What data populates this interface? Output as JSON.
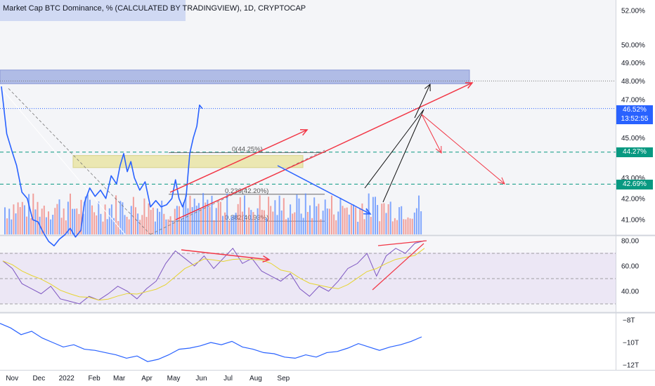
{
  "header": {
    "title": "Market Cap BTC Dominance, % (CALCULATED BY TRADINGVIEW), 1D, CRYPTOCAP"
  },
  "colors": {
    "price_line": "#2962ff",
    "trend_red": "#f23645",
    "rsi_line": "#7e57c2",
    "rsi_ma": "#e6d430",
    "volume_blue": "#5b8cff",
    "volume_red": "#f0837e",
    "level_green": "#089981",
    "resistance_box": "#9aa8e0",
    "yellow_box": "#e8e4a0"
  },
  "price_tags": {
    "current": "46.52%",
    "countdown": "13:52:55",
    "level_1": "44.27%",
    "level_2": "42.69%"
  },
  "fib_labels": {
    "top": "0(44.25%)",
    "mid": "0.236(42.20%)",
    "low": "0.382(40.93%)"
  },
  "chart_data": {
    "type": "line",
    "title": "Market Cap BTC Dominance, % (CALCULATED BY TRADINGVIEW), 1D, CRYPTOCAP",
    "x_ticks": [
      "Nov",
      "Dec",
      "2022",
      "Feb",
      "Mar",
      "Apr",
      "May",
      "Jun",
      "Jul",
      "Aug",
      "Sep"
    ],
    "price_axis": {
      "ticks": [
        "52.00%",
        "50.00%",
        "49.00%",
        "48.00%",
        "47.00%",
        "45.00%",
        "43.00%",
        "42.00%",
        "41.00%"
      ],
      "scale": "log"
    },
    "series": [
      {
        "points": [
          [
            "2021-10-20",
            47.7
          ],
          [
            "2021-10-26",
            45.2
          ],
          [
            "2021-11-01",
            44.3
          ],
          [
            "2021-11-06",
            43.6
          ],
          [
            "2021-11-12",
            42.3
          ],
          [
            "2021-11-18",
            42.0
          ],
          [
            "2021-11-24",
            41.0
          ],
          [
            "2021-11-30",
            40.9
          ],
          [
            "2021-12-06",
            40.4
          ],
          [
            "2021-12-12",
            40.0
          ],
          [
            "2021-12-18",
            39.8
          ],
          [
            "2021-12-24",
            40.1
          ],
          [
            "2021-12-30",
            40.3
          ],
          [
            "2022-01-05",
            40.6
          ],
          [
            "2022-01-11",
            40.2
          ],
          [
            "2022-01-17",
            40.5
          ],
          [
            "2022-01-21",
            41.8
          ],
          [
            "2022-01-27",
            42.5
          ],
          [
            "2022-02-02",
            42.1
          ],
          [
            "2022-02-08",
            42.4
          ],
          [
            "2022-02-14",
            42.0
          ],
          [
            "2022-02-20",
            43.1
          ],
          [
            "2022-02-26",
            42.7
          ],
          [
            "2022-03-02",
            43.6
          ],
          [
            "2022-03-06",
            44.2
          ],
          [
            "2022-03-10",
            43.3
          ],
          [
            "2022-03-14",
            43.8
          ],
          [
            "2022-03-18",
            43.0
          ],
          [
            "2022-03-24",
            42.4
          ],
          [
            "2022-03-30",
            42.8
          ],
          [
            "2022-04-05",
            41.6
          ],
          [
            "2022-04-11",
            41.9
          ],
          [
            "2022-04-17",
            41.6
          ],
          [
            "2022-04-23",
            41.7
          ],
          [
            "2022-04-29",
            42.0
          ],
          [
            "2022-05-03",
            42.9
          ],
          [
            "2022-05-07",
            42.0
          ],
          [
            "2022-05-11",
            41.6
          ],
          [
            "2022-05-15",
            42.1
          ],
          [
            "2022-05-19",
            44.2
          ],
          [
            "2022-05-23",
            45.0
          ],
          [
            "2022-05-27",
            45.6
          ],
          [
            "2022-05-30",
            46.7
          ],
          [
            "2022-06-02",
            46.52
          ]
        ]
      }
    ],
    "horizontal_levels": [
      44.27,
      42.69,
      46.52,
      48.0
    ],
    "resistance_zone": [
      47.85,
      48.6
    ],
    "demand_zone": [
      43.5,
      44.1
    ],
    "fibonacci": [
      {
        "label": "0(44.25%)",
        "value": 44.25
      },
      {
        "label": "0.236(42.20%)",
        "value": 42.2
      },
      {
        "label": "0.382(40.93%)",
        "value": 40.93
      }
    ],
    "rsi": {
      "ticks": [
        "80.00",
        "60.00",
        "40.00"
      ],
      "bands": [
        70,
        50,
        30
      ],
      "values": [
        64,
        58,
        46,
        42,
        38,
        44,
        34,
        32,
        30,
        36,
        33,
        38,
        44,
        40,
        34,
        42,
        48,
        62,
        72,
        66,
        60,
        68,
        58,
        66,
        74,
        62,
        66,
        56,
        52,
        48,
        54,
        42,
        36,
        44,
        40,
        48,
        58,
        62,
        70,
        52,
        68,
        74,
        70,
        78,
        80
      ]
    },
    "oscillator": {
      "ticks": [
        "−8T",
        "−10T",
        "−12T"
      ],
      "values": [
        -8.3,
        -8.7,
        -9.3,
        -9.0,
        -9.6,
        -10.0,
        -10.4,
        -10.2,
        -10.6,
        -10.7,
        -10.9,
        -11.1,
        -11.4,
        -11.2,
        -11.7,
        -11.5,
        -11.1,
        -10.6,
        -10.5,
        -10.3,
        -10.0,
        -10.2,
        -9.9,
        -10.4,
        -10.6,
        -10.9,
        -11.0,
        -11.3,
        -11.4,
        -11.1,
        -11.3,
        -10.9,
        -10.8,
        -10.5,
        -10.1,
        -10.4,
        -10.7,
        -10.4,
        -10.2,
        -9.9,
        -9.5
      ]
    }
  }
}
